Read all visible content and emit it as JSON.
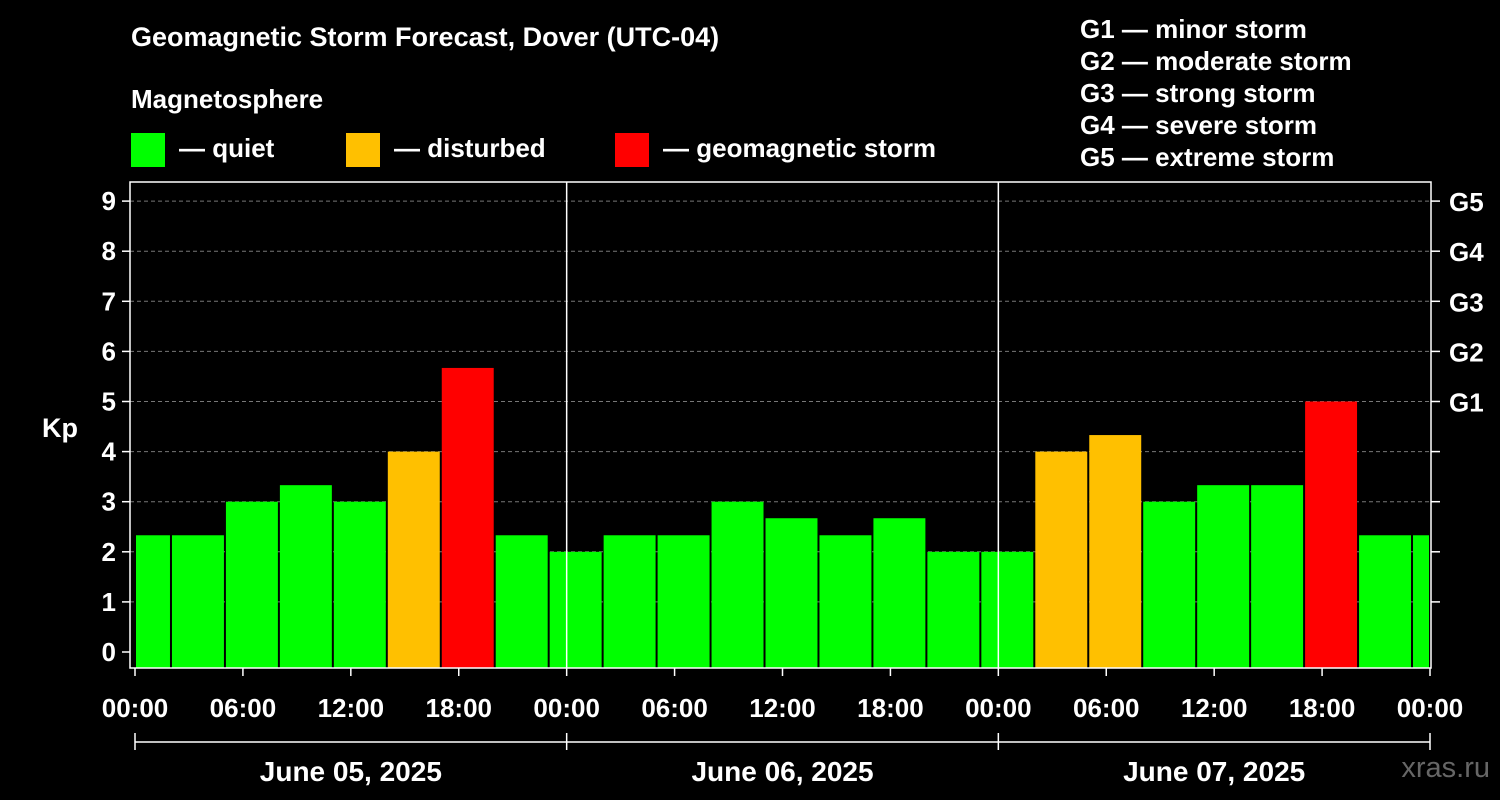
{
  "chart_data": {
    "type": "bar",
    "title": "Geomagnetic Storm Forecast, Dover (UTC-04)",
    "subtitle": "Magnetosphere",
    "ylabel": "Kp",
    "ylim": [
      -0.3,
      9.4
    ],
    "yticks": [
      "0",
      "1",
      "2",
      "3",
      "4",
      "5",
      "6",
      "7",
      "8",
      "9"
    ],
    "right_ticks": [
      {
        "kp": 5,
        "label": "G1"
      },
      {
        "kp": 6,
        "label": "G2"
      },
      {
        "kp": 7,
        "label": "G3"
      },
      {
        "kp": 8,
        "label": "G4"
      },
      {
        "kp": 9,
        "label": "G5"
      }
    ],
    "x_range_hours": [
      0,
      72
    ],
    "xtick_labels": [
      "00:00",
      "06:00",
      "12:00",
      "18:00",
      "00:00",
      "06:00",
      "12:00",
      "18:00",
      "00:00",
      "06:00",
      "12:00",
      "18:00",
      "00:00"
    ],
    "days": [
      "June 05, 2025",
      "June 06, 2025",
      "June 07, 2025"
    ],
    "grid": true,
    "legend": [
      {
        "label": "— quiet",
        "color": "#00FF00"
      },
      {
        "label": "— disturbed",
        "color": "#FFC000"
      },
      {
        "label": "— geomagnetic storm",
        "color": "#FF0000"
      }
    ],
    "storm_scale": [
      "G1 — minor storm",
      "G2 — moderate storm",
      "G3 — strong storm",
      "G4 — severe storm",
      "G5 — extreme storm"
    ],
    "bars": [
      {
        "start": 0,
        "end": 2,
        "kp": 2.33,
        "level": "quiet"
      },
      {
        "start": 2,
        "end": 5,
        "kp": 2.33,
        "level": "quiet"
      },
      {
        "start": 5,
        "end": 8,
        "kp": 3.0,
        "level": "quiet"
      },
      {
        "start": 8,
        "end": 11,
        "kp": 3.33,
        "level": "quiet"
      },
      {
        "start": 11,
        "end": 14,
        "kp": 3.0,
        "level": "quiet"
      },
      {
        "start": 14,
        "end": 17,
        "kp": 4.0,
        "level": "disturbed"
      },
      {
        "start": 17,
        "end": 20,
        "kp": 5.67,
        "level": "storm"
      },
      {
        "start": 20,
        "end": 23,
        "kp": 2.33,
        "level": "quiet"
      },
      {
        "start": 23,
        "end": 26,
        "kp": 2.0,
        "level": "quiet"
      },
      {
        "start": 26,
        "end": 29,
        "kp": 2.33,
        "level": "quiet"
      },
      {
        "start": 29,
        "end": 32,
        "kp": 2.33,
        "level": "quiet"
      },
      {
        "start": 32,
        "end": 35,
        "kp": 3.0,
        "level": "quiet"
      },
      {
        "start": 35,
        "end": 38,
        "kp": 2.67,
        "level": "quiet"
      },
      {
        "start": 38,
        "end": 41,
        "kp": 2.33,
        "level": "quiet"
      },
      {
        "start": 41,
        "end": 44,
        "kp": 2.67,
        "level": "quiet"
      },
      {
        "start": 44,
        "end": 47,
        "kp": 2.0,
        "level": "quiet"
      },
      {
        "start": 47,
        "end": 50,
        "kp": 2.0,
        "level": "quiet"
      },
      {
        "start": 50,
        "end": 53,
        "kp": 4.0,
        "level": "disturbed"
      },
      {
        "start": 53,
        "end": 56,
        "kp": 4.33,
        "level": "disturbed"
      },
      {
        "start": 56,
        "end": 59,
        "kp": 3.0,
        "level": "quiet"
      },
      {
        "start": 59,
        "end": 62,
        "kp": 3.33,
        "level": "quiet"
      },
      {
        "start": 62,
        "end": 65,
        "kp": 3.33,
        "level": "quiet"
      },
      {
        "start": 65,
        "end": 68,
        "kp": 5.0,
        "level": "storm"
      },
      {
        "start": 68,
        "end": 71,
        "kp": 2.33,
        "level": "quiet"
      },
      {
        "start": 71,
        "end": 72,
        "kp": 2.33,
        "level": "quiet"
      }
    ],
    "level_colors": {
      "quiet": "#00FF00",
      "disturbed": "#FFC000",
      "storm": "#FF0000"
    }
  },
  "watermark": "xras.ru"
}
